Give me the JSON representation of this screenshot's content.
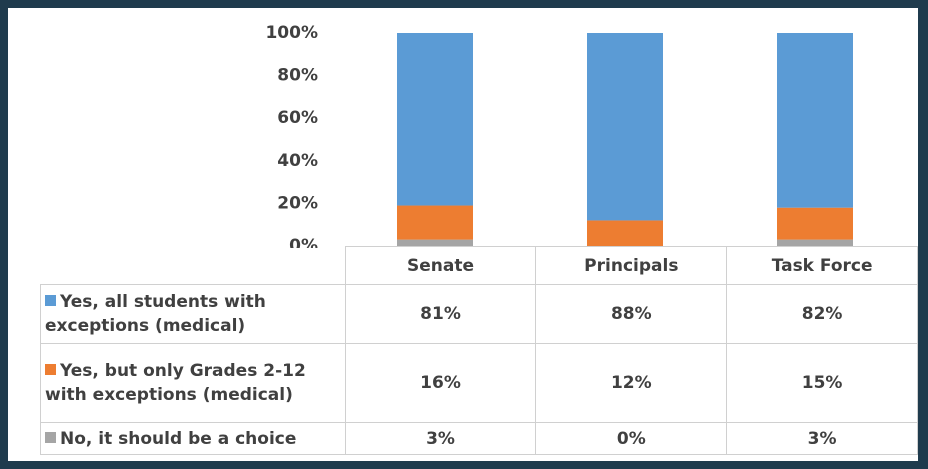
{
  "chart_data": {
    "type": "stacked_bar",
    "categories": [
      "Senate",
      "Principals",
      "Task Force"
    ],
    "series": [
      {
        "name": "Yes, all students with exceptions (medical)",
        "color": "#5b9bd5",
        "values": [
          81,
          88,
          82
        ],
        "value_labels": [
          "81%",
          "88%",
          "82%"
        ]
      },
      {
        "name": "Yes, but only Grades 2-12 with exceptions (medical)",
        "color": "#ed7d31",
        "values": [
          16,
          12,
          15
        ],
        "value_labels": [
          "16%",
          "12%",
          "15%"
        ]
      },
      {
        "name": "No, it should be a choice",
        "color": "#a5a5a5",
        "values": [
          3,
          0,
          3
        ],
        "value_labels": [
          "3%",
          "0%",
          "3%"
        ]
      }
    ],
    "ylim": [
      0,
      100
    ],
    "yticks": [
      {
        "value": 0,
        "label": "0%"
      },
      {
        "value": 20,
        "label": "20%"
      },
      {
        "value": 40,
        "label": "40%"
      },
      {
        "value": 60,
        "label": "60%"
      },
      {
        "value": 80,
        "label": "80%"
      },
      {
        "value": 100,
        "label": "100%"
      }
    ],
    "grid": false
  }
}
